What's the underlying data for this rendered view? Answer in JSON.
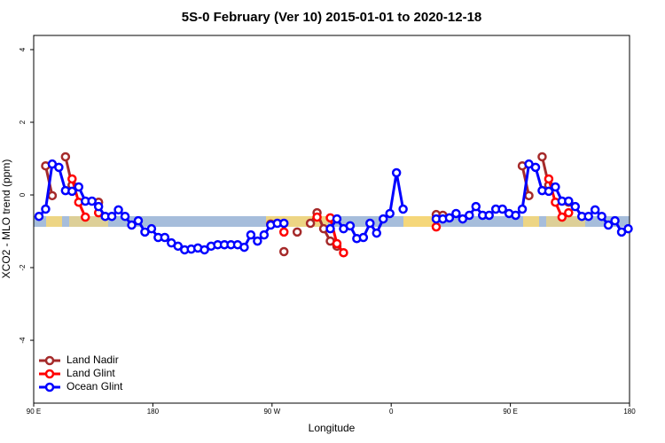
{
  "chart_data": {
    "type": "line",
    "title": "5S-0 February (Ver 10)   2015-01-01 to 2020-12-18",
    "x_label": "Longitude",
    "y_label": "XCO2 - MLO trend (ppm)",
    "xlim": [
      90,
      540
    ],
    "ylim": [
      -5.73,
      4.39
    ],
    "xticks": [
      {
        "value": 90,
        "label": "90 E"
      },
      180,
      {
        "value": 270,
        "label": "90 W"
      },
      {
        "value": 360,
        "label": "0"
      },
      {
        "value": 450,
        "label": "90 E"
      },
      {
        "value": 540,
        "label": "180"
      }
    ],
    "yticks": [
      4,
      2,
      0,
      -2,
      -4
    ],
    "legend": "bottom-left",
    "series": [
      {
        "name": "Land Nadir",
        "color": "#a52a2a",
        "x": [
          99,
          104,
          109,
          114,
          119,
          129,
          139,
          204,
          269,
          274,
          279,
          284,
          289,
          294,
          299,
          304,
          309,
          314,
          319,
          350,
          394,
          399,
          429,
          459,
          464,
          469,
          474,
          479,
          486,
          494
        ],
        "values": [
          0.8,
          -0.02,
          null,
          1.05,
          0.27,
          null,
          -0.2,
          null,
          -0.8,
          null,
          -1.56,
          null,
          -1.02,
          null,
          -0.78,
          -0.49,
          -0.93,
          -1.27,
          -1.41,
          null,
          -0.54,
          -0.56,
          null,
          0.8,
          -0.02,
          null,
          1.05,
          0.27,
          null,
          -0.2
        ]
      },
      {
        "name": "Land Glint",
        "color": "#ff0000",
        "x": [
          119,
          124,
          129,
          134,
          139,
          200,
          279,
          290,
          304,
          310,
          314,
          319,
          324,
          350,
          394,
          430,
          479,
          484,
          489,
          492,
          494
        ],
        "values": [
          0.44,
          -0.2,
          -0.61,
          null,
          -0.49,
          null,
          -1.02,
          null,
          -0.61,
          null,
          -0.63,
          -1.34,
          -1.59,
          null,
          -0.88,
          null,
          0.44,
          -0.2,
          -0.61,
          null,
          -0.49
        ]
      },
      {
        "name": "Ocean Glint",
        "color": "#0000ff",
        "x": [
          94,
          99,
          104,
          109,
          114,
          119,
          124,
          129,
          134,
          139,
          144,
          149,
          154,
          159,
          164,
          169,
          174,
          179,
          184,
          189,
          194,
          199,
          204,
          209,
          214,
          219,
          224,
          229,
          234,
          239,
          244,
          249,
          254,
          259,
          264,
          269,
          274,
          279,
          284,
          314,
          319,
          324,
          329,
          334,
          339,
          344,
          349,
          354,
          359,
          364,
          369,
          374,
          394,
          399,
          404,
          409,
          414,
          419,
          424,
          429,
          434,
          439,
          444,
          449,
          454,
          459,
          464,
          469,
          474,
          479,
          484,
          489,
          494,
          499,
          504,
          509,
          514,
          519,
          524,
          529,
          534,
          539
        ],
        "values": [
          -0.59,
          -0.39,
          0.85,
          0.76,
          0.12,
          0.1,
          0.22,
          -0.17,
          -0.17,
          -0.32,
          -0.59,
          -0.59,
          -0.41,
          -0.59,
          -0.83,
          -0.71,
          -1.02,
          -0.93,
          -1.17,
          -1.17,
          -1.32,
          -1.41,
          -1.51,
          -1.49,
          -1.46,
          -1.51,
          -1.41,
          -1.37,
          -1.37,
          -1.37,
          -1.37,
          -1.44,
          -1.1,
          -1.27,
          -1.1,
          -0.83,
          -0.78,
          -0.78,
          null,
          -0.93,
          -0.66,
          -0.93,
          -0.85,
          -1.2,
          -1.17,
          -0.78,
          -1.05,
          -0.66,
          -0.51,
          0.61,
          -0.39,
          null,
          -0.66,
          -0.66,
          -0.63,
          -0.51,
          -0.66,
          -0.56,
          -0.32,
          -0.56,
          -0.56,
          -0.39,
          -0.39,
          -0.51,
          -0.56,
          -0.39,
          0.85,
          0.76,
          0.12,
          0.1,
          0.22,
          -0.17,
          -0.17,
          -0.32,
          -0.59,
          -0.59,
          -0.41,
          -0.59,
          -0.83,
          -0.71,
          -1.02,
          -0.93
        ]
      }
    ]
  }
}
